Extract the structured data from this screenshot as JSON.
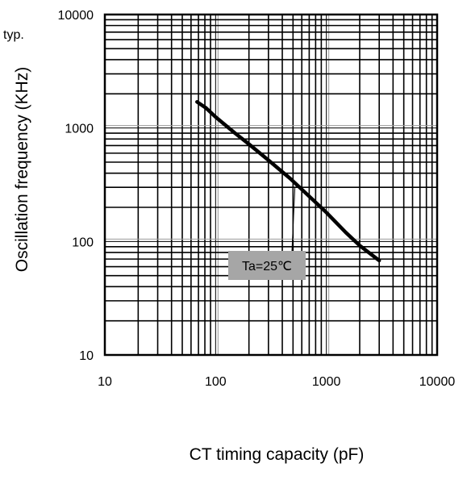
{
  "chart_data": {
    "type": "line",
    "xlabel": "CT timing capacity (pF)",
    "ylabel": "Oscillation frequency (KHz)",
    "x_scale": "log",
    "y_scale": "log",
    "xlim": [
      10,
      10000
    ],
    "ylim": [
      10,
      10000
    ],
    "x_ticks": [
      "10",
      "100",
      "1000",
      "10000"
    ],
    "y_ticks": [
      "10",
      "100",
      "1000",
      "10000"
    ],
    "grid": true,
    "corner_note": "typ.",
    "annotation": "Ta=25℃",
    "annotation_fill": "#a6a6a6",
    "series": [
      {
        "x": [
          68,
          82,
          100,
          150,
          200,
          300,
          470,
          700,
          1000,
          1500,
          2000,
          3000
        ],
        "y": [
          1700,
          1500,
          1250,
          900,
          720,
          520,
          360,
          250,
          180,
          120,
          92,
          68
        ]
      }
    ]
  }
}
